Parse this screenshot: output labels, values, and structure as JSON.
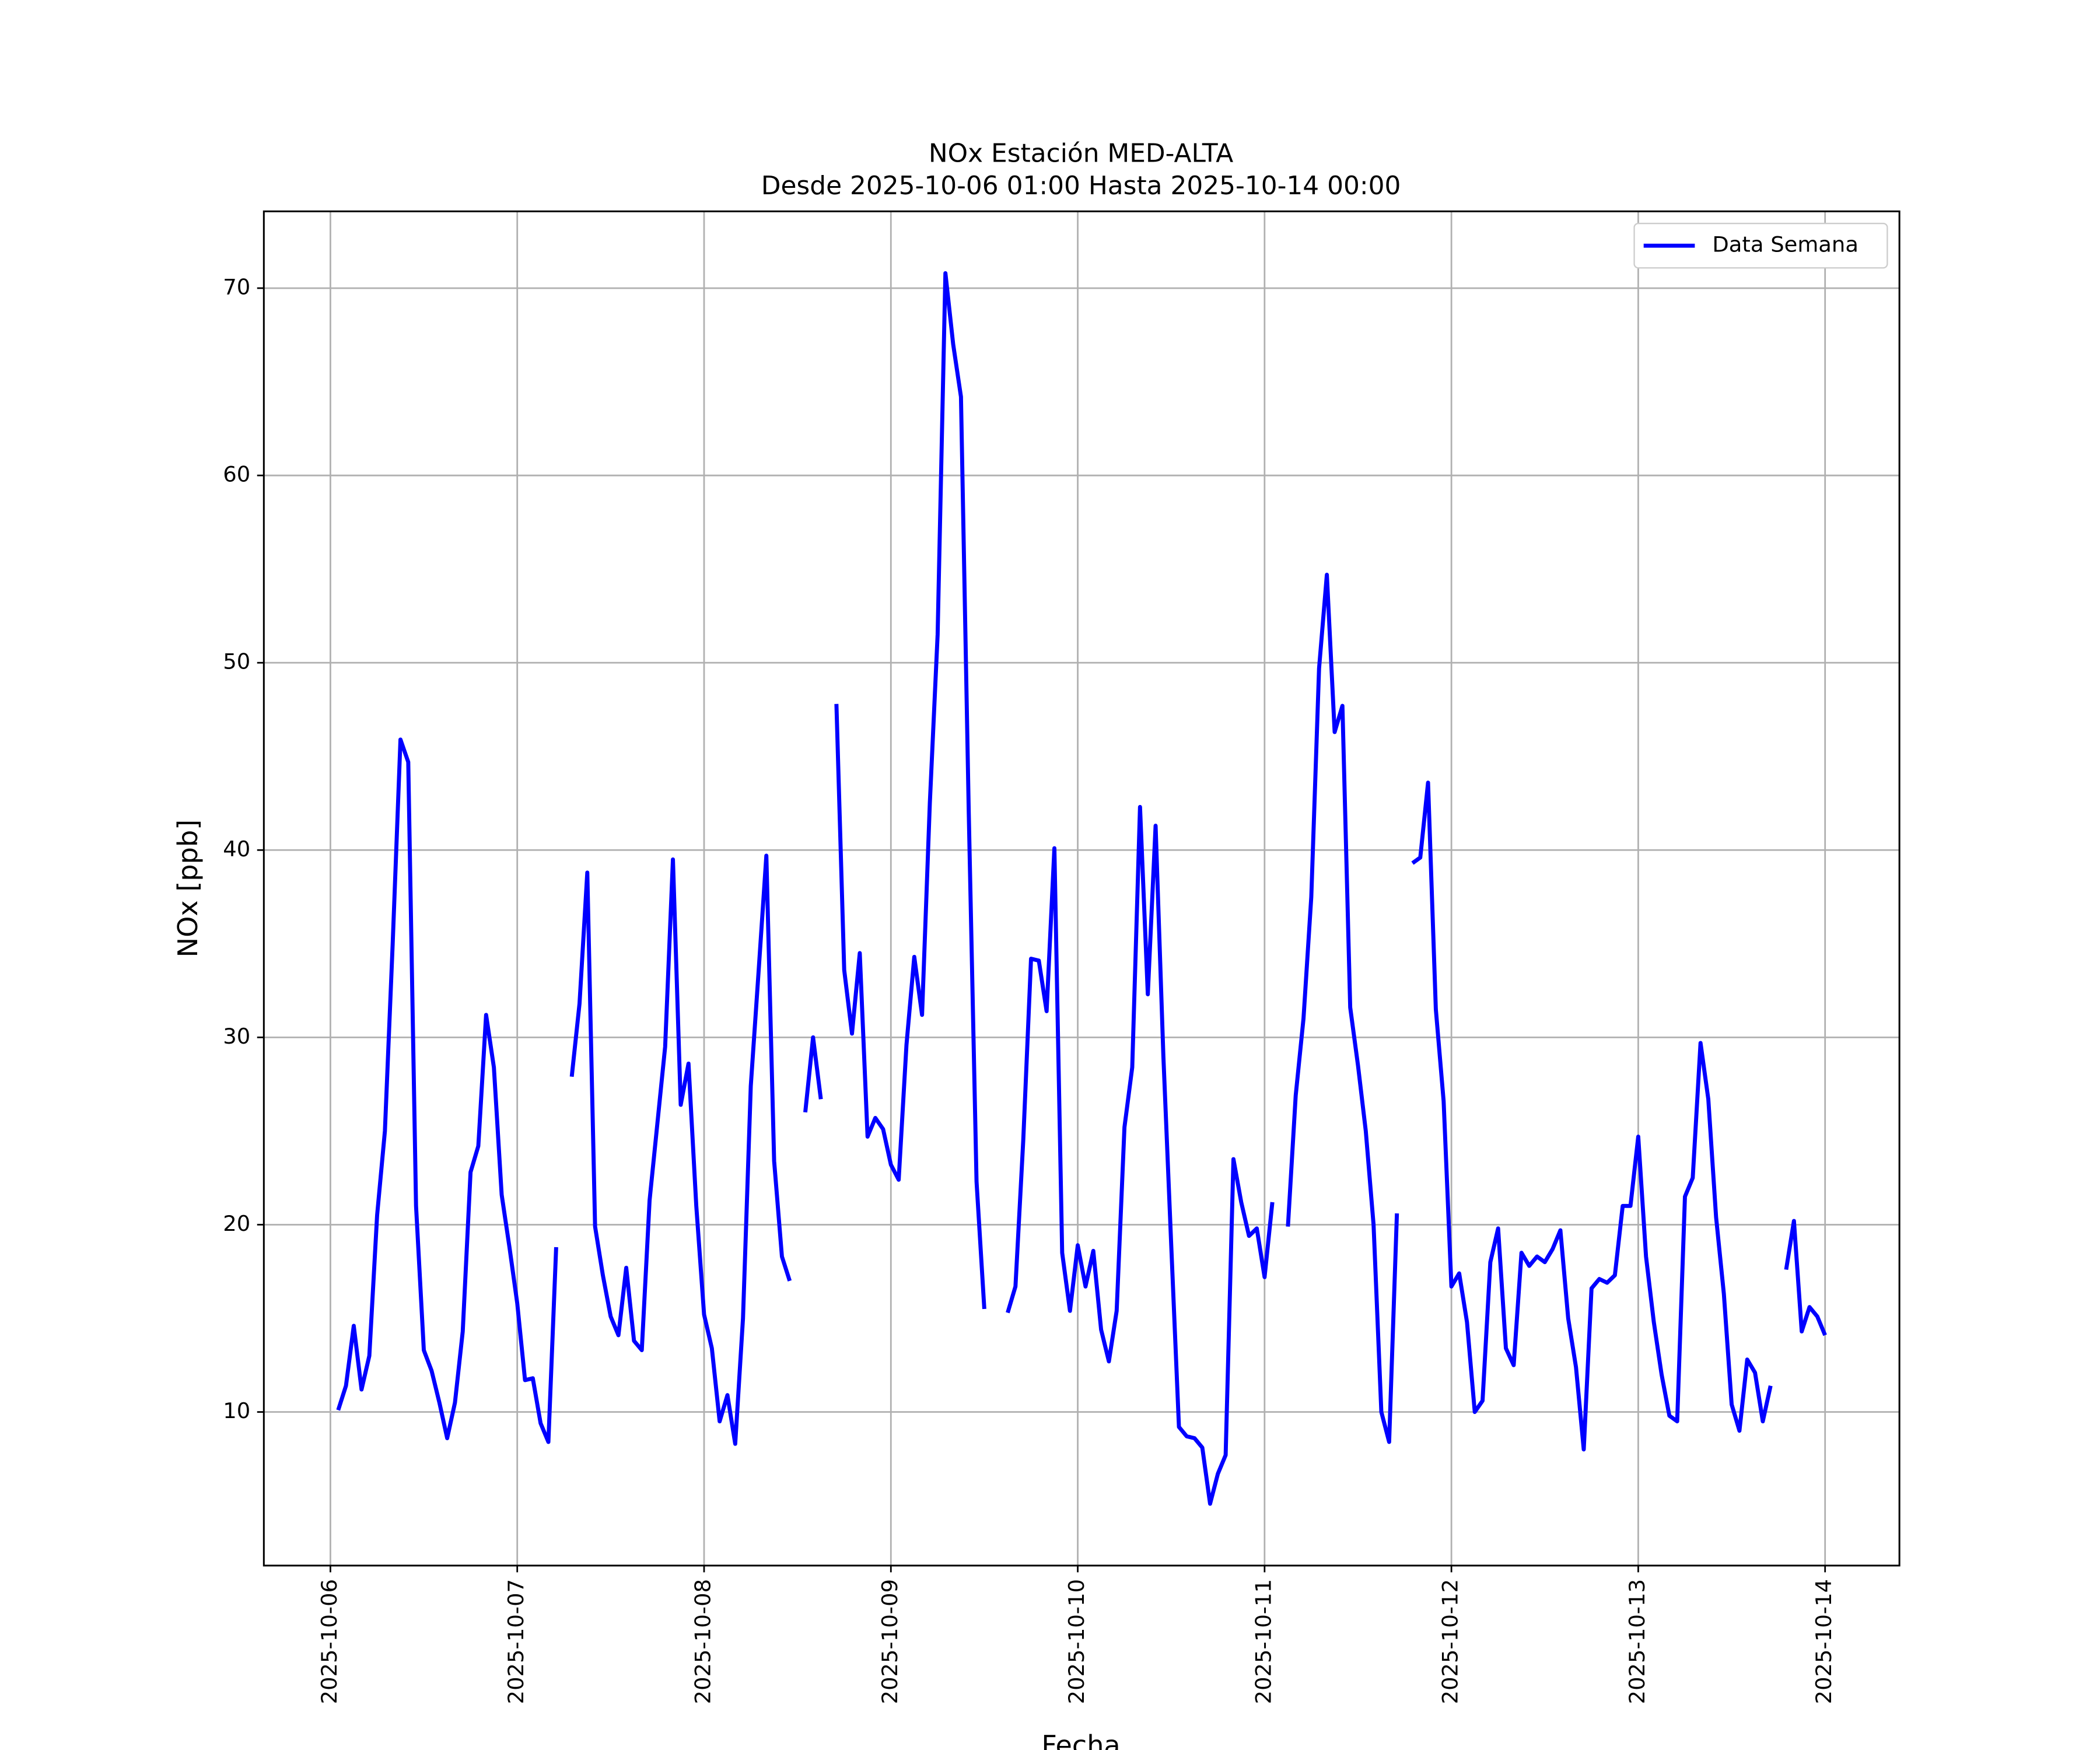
{
  "chart_data": {
    "type": "line",
    "title": "NOx Estación MED-ALTA",
    "subtitle": "Desde 2025-10-06 01:00 Hasta 2025-10-14 00:00",
    "x_label": "Fecha",
    "y_label": "NOx [ppb]",
    "x": [
      "2025-10-06 01:00",
      "2025-10-06 02:00",
      "2025-10-06 03:00",
      "2025-10-06 04:00",
      "2025-10-06 05:00",
      "2025-10-06 06:00",
      "2025-10-06 07:00",
      "2025-10-06 08:00",
      "2025-10-06 09:00",
      "2025-10-06 10:00",
      "2025-10-06 11:00",
      "2025-10-06 12:00",
      "2025-10-06 13:00",
      "2025-10-06 14:00",
      "2025-10-06 15:00",
      "2025-10-06 16:00",
      "2025-10-06 17:00",
      "2025-10-06 18:00",
      "2025-10-06 19:00",
      "2025-10-06 20:00",
      "2025-10-06 21:00",
      "2025-10-06 22:00",
      "2025-10-06 23:00",
      "2025-10-07 00:00",
      "2025-10-07 01:00",
      "2025-10-07 02:00",
      "2025-10-07 03:00",
      "2025-10-07 04:00",
      "2025-10-07 05:00",
      "2025-10-07 06:00",
      "2025-10-07 07:00",
      "2025-10-07 08:00",
      "2025-10-07 09:00",
      "2025-10-07 10:00",
      "2025-10-07 11:00",
      "2025-10-07 12:00",
      "2025-10-07 13:00",
      "2025-10-07 14:00",
      "2025-10-07 15:00",
      "2025-10-07 16:00",
      "2025-10-07 17:00",
      "2025-10-07 18:00",
      "2025-10-07 19:00",
      "2025-10-07 20:00",
      "2025-10-07 21:00",
      "2025-10-07 22:00",
      "2025-10-07 23:00",
      "2025-10-08 00:00",
      "2025-10-08 01:00",
      "2025-10-08 02:00",
      "2025-10-08 03:00",
      "2025-10-08 04:00",
      "2025-10-08 05:00",
      "2025-10-08 06:00",
      "2025-10-08 07:00",
      "2025-10-08 08:00",
      "2025-10-08 09:00",
      "2025-10-08 10:00",
      "2025-10-08 11:00",
      "2025-10-08 12:00",
      "2025-10-08 13:00",
      "2025-10-08 14:00",
      "2025-10-08 15:00",
      "2025-10-08 16:00",
      "2025-10-08 17:00",
      "2025-10-08 18:00",
      "2025-10-08 19:00",
      "2025-10-08 20:00",
      "2025-10-08 21:00",
      "2025-10-08 22:00",
      "2025-10-08 23:00",
      "2025-10-09 00:00",
      "2025-10-09 01:00",
      "2025-10-09 02:00",
      "2025-10-09 03:00",
      "2025-10-09 04:00",
      "2025-10-09 05:00",
      "2025-10-09 06:00",
      "2025-10-09 07:00",
      "2025-10-09 08:00",
      "2025-10-09 09:00",
      "2025-10-09 10:00",
      "2025-10-09 11:00",
      "2025-10-09 12:00",
      "2025-10-09 13:00",
      "2025-10-09 14:00",
      "2025-10-09 15:00",
      "2025-10-09 16:00",
      "2025-10-09 17:00",
      "2025-10-09 18:00",
      "2025-10-09 19:00",
      "2025-10-09 20:00",
      "2025-10-09 21:00",
      "2025-10-09 22:00",
      "2025-10-09 23:00",
      "2025-10-10 00:00",
      "2025-10-10 01:00",
      "2025-10-10 02:00",
      "2025-10-10 03:00",
      "2025-10-10 04:00",
      "2025-10-10 05:00",
      "2025-10-10 06:00",
      "2025-10-10 07:00",
      "2025-10-10 08:00",
      "2025-10-10 09:00",
      "2025-10-10 10:00",
      "2025-10-10 11:00",
      "2025-10-10 12:00",
      "2025-10-10 13:00",
      "2025-10-10 14:00",
      "2025-10-10 15:00",
      "2025-10-10 16:00",
      "2025-10-10 17:00",
      "2025-10-10 18:00",
      "2025-10-10 19:00",
      "2025-10-10 20:00",
      "2025-10-10 21:00",
      "2025-10-10 22:00",
      "2025-10-10 23:00",
      "2025-10-11 00:00",
      "2025-10-11 01:00",
      "2025-10-11 02:00",
      "2025-10-11 03:00",
      "2025-10-11 04:00",
      "2025-10-11 05:00",
      "2025-10-11 06:00",
      "2025-10-11 07:00",
      "2025-10-11 08:00",
      "2025-10-11 09:00",
      "2025-10-11 10:00",
      "2025-10-11 11:00",
      "2025-10-11 12:00",
      "2025-10-11 13:00",
      "2025-10-11 14:00",
      "2025-10-11 15:00",
      "2025-10-11 16:00",
      "2025-10-11 17:00",
      "2025-10-11 18:00",
      "2025-10-11 19:00",
      "2025-10-11 20:00",
      "2025-10-11 21:00",
      "2025-10-11 22:00",
      "2025-10-11 23:00",
      "2025-10-12 00:00",
      "2025-10-12 01:00",
      "2025-10-12 02:00",
      "2025-10-12 03:00",
      "2025-10-12 04:00",
      "2025-10-12 05:00",
      "2025-10-12 06:00",
      "2025-10-12 07:00",
      "2025-10-12 08:00",
      "2025-10-12 09:00",
      "2025-10-12 10:00",
      "2025-10-12 11:00",
      "2025-10-12 12:00",
      "2025-10-12 13:00",
      "2025-10-12 14:00",
      "2025-10-12 15:00",
      "2025-10-12 16:00",
      "2025-10-12 17:00",
      "2025-10-12 18:00",
      "2025-10-12 19:00",
      "2025-10-12 20:00",
      "2025-10-12 21:00",
      "2025-10-12 22:00",
      "2025-10-12 23:00",
      "2025-10-13 00:00",
      "2025-10-13 01:00",
      "2025-10-13 02:00",
      "2025-10-13 03:00",
      "2025-10-13 04:00",
      "2025-10-13 05:00",
      "2025-10-13 06:00",
      "2025-10-13 07:00",
      "2025-10-13 08:00",
      "2025-10-13 09:00",
      "2025-10-13 10:00",
      "2025-10-13 11:00",
      "2025-10-13 12:00",
      "2025-10-13 13:00",
      "2025-10-13 14:00",
      "2025-10-13 15:00",
      "2025-10-13 16:00",
      "2025-10-13 17:00",
      "2025-10-13 18:00",
      "2025-10-13 19:00",
      "2025-10-13 20:00",
      "2025-10-13 21:00",
      "2025-10-13 22:00",
      "2025-10-13 23:00",
      "2025-10-14 00:00"
    ],
    "series": [
      {
        "name": "Data Semana",
        "color": "#0000ff",
        "values": [
          10.1,
          11.4,
          14.6,
          11.2,
          13.0,
          20.5,
          25,
          35,
          45.9,
          44.7,
          21,
          13.3,
          12.2,
          10.5,
          8.6,
          10.5,
          14.3,
          22.8,
          24.2,
          31.2,
          28.4,
          21.6,
          18.8,
          15.8,
          11.7,
          11.8,
          9.4,
          8.4,
          18.8,
          null,
          27.9,
          31.8,
          38.8,
          19.9,
          17.3,
          15.1,
          14.1,
          17.7,
          13.8,
          13.3,
          21.3,
          25.4,
          29.5,
          39.5,
          26.4,
          28.6,
          21,
          15.2,
          13.4,
          9.5,
          10.9,
          8.3,
          15,
          27.4,
          33.5,
          39.7,
          23.4,
          18.3,
          17.0,
          null,
          26,
          30,
          26.7,
          null,
          47.8,
          33.6,
          30.2,
          34.5,
          24.7,
          25.7,
          25.1,
          23.2,
          22.4,
          29.6,
          34.3,
          31.2,
          42.5,
          51.5,
          70.8,
          67,
          64.2,
          42,
          22.3,
          15.5,
          null,
          null,
          15.3,
          16.7,
          24.5,
          34.2,
          34.1,
          31.4,
          40.1,
          18.5,
          15.4,
          18.9,
          16.7,
          18.6,
          14.4,
          12.7,
          15.4,
          25.2,
          28.4,
          42.3,
          32.3,
          41.3,
          29,
          19,
          9.2,
          8.7,
          8.6,
          8.1,
          5.1,
          6.7,
          7.7,
          23.5,
          21.2,
          19.4,
          19.8,
          17.2,
          21.2,
          null,
          19.9,
          26.9,
          31,
          37.5,
          49.7,
          54.7,
          46.3,
          47.7,
          31.6,
          28.5,
          25,
          20,
          10,
          8.4,
          20.6,
          null,
          39.3,
          39.6,
          43.6,
          31.5,
          26.6,
          16.7,
          17.4,
          14.8,
          10,
          10.6,
          18,
          19.8,
          13.4,
          12.5,
          18.5,
          17.8,
          18.3,
          18,
          18.7,
          19.7,
          15,
          12.4,
          8,
          16.6,
          17.1,
          16.9,
          17.3,
          21,
          21,
          24.7,
          18.3,
          14.8,
          12,
          9.8,
          9.5,
          21.5,
          22.5,
          29.7,
          26.7,
          20.4,
          16.3,
          10.4,
          9,
          12.8,
          12.1,
          9.5,
          11.4,
          null,
          17.6,
          20.2,
          14.3,
          15.6,
          15.1,
          14.1
        ]
      }
    ],
    "xlim": [
      "2025-10-05 15:27",
      "2025-10-14 09:33"
    ],
    "xticks": [
      "2025-10-06",
      "2025-10-07",
      "2025-10-08",
      "2025-10-09",
      "2025-10-10",
      "2025-10-11",
      "2025-10-12",
      "2025-10-13",
      "2025-10-14"
    ],
    "ylim": [
      1.8,
      74.1
    ],
    "yticks": [
      10,
      20,
      30,
      40,
      50,
      60,
      70
    ],
    "grid": true,
    "legend": "upper right"
  }
}
